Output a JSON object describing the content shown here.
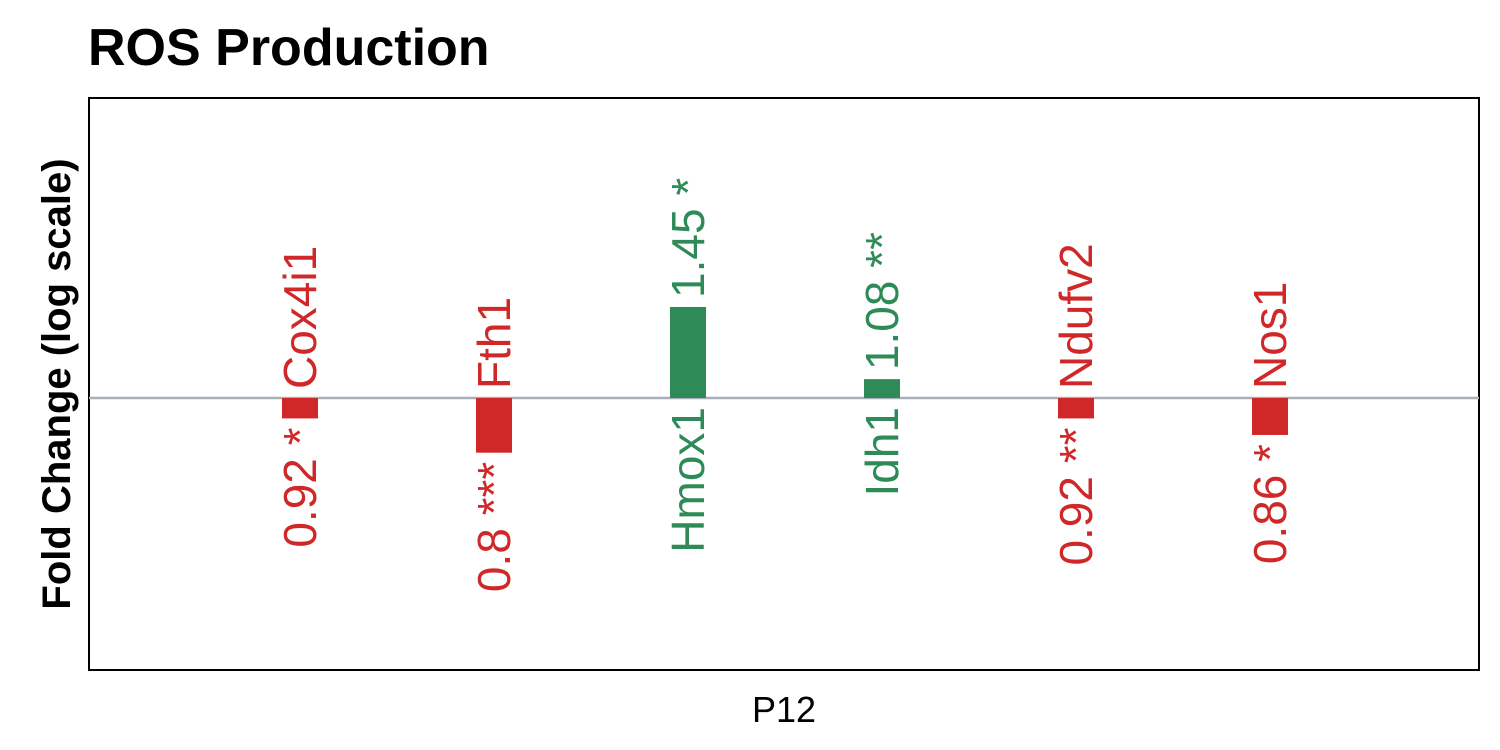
{
  "chart_data": {
    "type": "bar",
    "title": "ROS Production",
    "ylabel": "Fold Change (log scale)",
    "xlabel": "",
    "x_tick": "P12",
    "y_scale": "log",
    "baseline": 1,
    "grid": false,
    "legend": "none",
    "colors": {
      "up": "#2E8B57",
      "down": "#D02828",
      "baseline": "#A9B0B8"
    },
    "categories": [
      "Cox4i1",
      "Fth1",
      "Hmox1",
      "Idh1",
      "Ndufv2",
      "Nos1"
    ],
    "values": [
      0.92,
      0.8,
      1.45,
      1.08,
      0.92,
      0.86
    ],
    "value_labels": [
      "0.92 *",
      "0.8 ***",
      "1.45 *",
      "1.08 **",
      "0.92 **",
      "0.86 *"
    ]
  }
}
